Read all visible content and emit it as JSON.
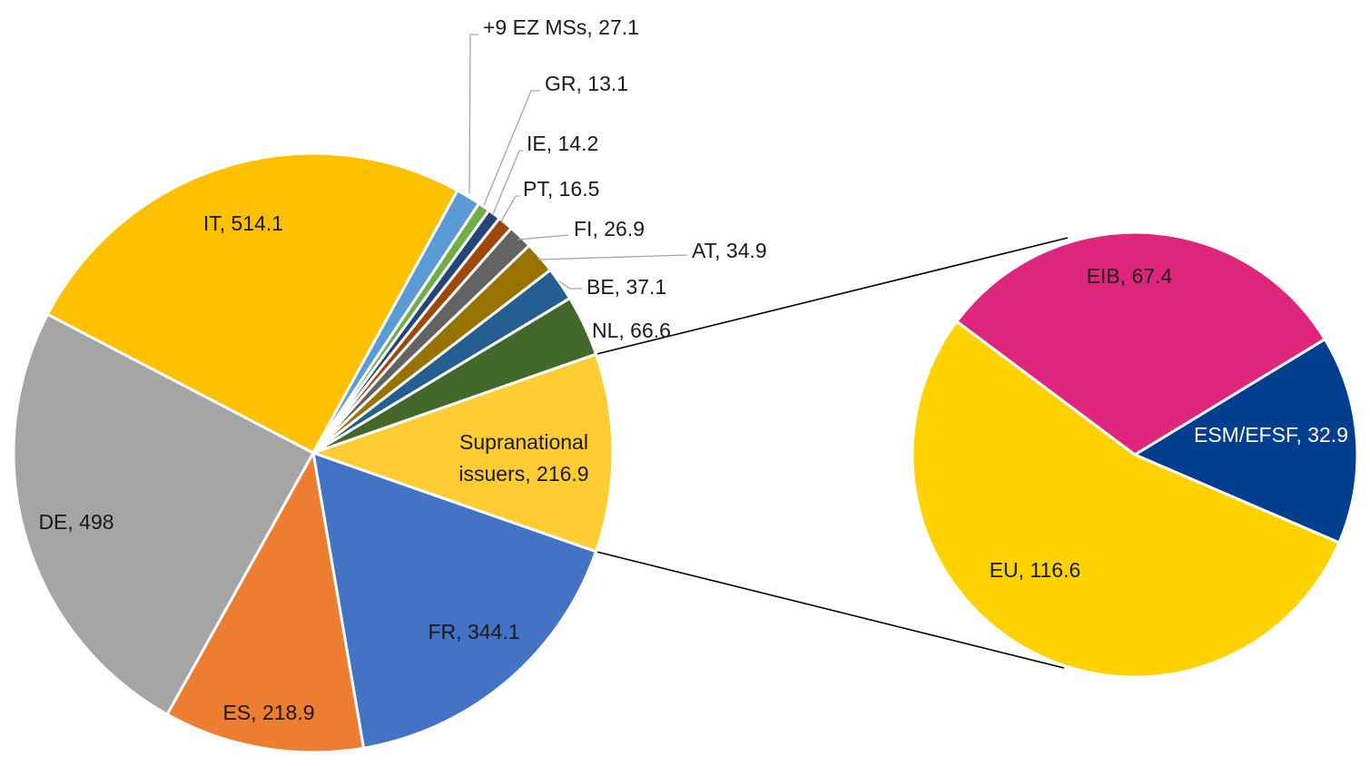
{
  "chart_data": {
    "type": "pie",
    "title": "",
    "legend": "none",
    "main_pie": {
      "slices": [
        {
          "label": "Supranational issuers",
          "label_line2": "issuers, 216.9",
          "value": 216.9,
          "text": "Supranational issuers, 216.9",
          "color": "#FFCC33"
        },
        {
          "label": "FR",
          "value": 344.1,
          "text": "FR, 344.1",
          "color": "#4472C4"
        },
        {
          "label": "ES",
          "value": 218.9,
          "text": "ES, 218.9",
          "color": "#ED7D31"
        },
        {
          "label": "DE",
          "value": 498,
          "text": "DE, 498",
          "color": "#A5A5A5"
        },
        {
          "label": "IT",
          "value": 514.1,
          "text": "IT, 514.1",
          "color": "#FFC000"
        },
        {
          "label": "+9 EZ MSs",
          "value": 27.1,
          "text": "+9 EZ MSs, 27.1",
          "color": "#5B9BD5"
        },
        {
          "label": "GR",
          "value": 13.1,
          "text": "GR, 13.1",
          "color": "#70AD47"
        },
        {
          "label": "IE",
          "value": 14.2,
          "text": "IE, 14.2",
          "color": "#264478"
        },
        {
          "label": "PT",
          "value": 16.5,
          "text": "PT, 16.5",
          "color": "#9E480E"
        },
        {
          "label": "FI",
          "value": 26.9,
          "text": "FI, 26.9",
          "color": "#636363"
        },
        {
          "label": "AT",
          "value": 34.9,
          "text": "AT, 34.9",
          "color": "#997300"
        },
        {
          "label": "BE",
          "value": 37.1,
          "text": "BE, 37.1",
          "color": "#255E91"
        },
        {
          "label": "NL",
          "value": 66.6,
          "text": "NL, 66.6",
          "color": "#43682B"
        }
      ]
    },
    "breakdown_pie": {
      "of": "Supranational issuers",
      "slices": [
        {
          "label": "ESM/EFSF",
          "value": 32.9,
          "text": "ESM/EFSF, 32.9",
          "color": "#003F8F"
        },
        {
          "label": "EU",
          "value": 116.6,
          "text": "EU, 116.6",
          "color": "#FFD200"
        },
        {
          "label": "EIB",
          "value": 67.4,
          "text": "EIB, 67.4",
          "color": "#DE277C"
        }
      ]
    }
  }
}
